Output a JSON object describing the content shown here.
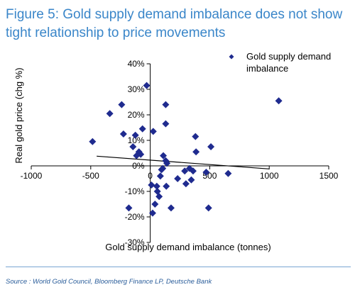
{
  "figure": {
    "title": "Figure 5: Gold supply demand imbalance does not show tight relationship to price movements",
    "source": "Source : World Gold Council, Bloomberg Finance LP, Deutsche Bank"
  },
  "colors": {
    "title": "#3a86c9",
    "marker": "#1f2b8f",
    "trendline": "#000000"
  },
  "chart_data": {
    "type": "scatter",
    "xlabel": "Gold supply demand imbalance (tonnes)",
    "ylabel": "Real gold price (chg %)",
    "xlim": [
      -1000,
      1500
    ],
    "ylim": [
      -30,
      40
    ],
    "x_ticks": [
      -1000,
      -500,
      0,
      500,
      1000,
      1500
    ],
    "y_ticks": [
      -30,
      -20,
      -10,
      0,
      10,
      20,
      30,
      40
    ],
    "x_tick_labels": [
      "-1000",
      "-500",
      "0",
      "500",
      "1000",
      "1500"
    ],
    "y_tick_labels": [
      "-30%",
      "-20%",
      "-10%",
      "0%",
      "10%",
      "20%",
      "30%",
      "40%"
    ],
    "grid": false,
    "legend_position": "top-right",
    "series": [
      {
        "name": "Gold supply demand imbalance",
        "marker": "diamond",
        "points": [
          [
            -485,
            9.5
          ],
          [
            -340,
            20.5
          ],
          [
            -240,
            24
          ],
          [
            -225,
            12.5
          ],
          [
            -180,
            -16.5
          ],
          [
            -145,
            7.5
          ],
          [
            -125,
            12
          ],
          [
            -115,
            4
          ],
          [
            -95,
            5.5
          ],
          [
            -80,
            4.5
          ],
          [
            -65,
            14.5
          ],
          [
            -30,
            31.5
          ],
          [
            10,
            -7.5
          ],
          [
            20,
            -18.5
          ],
          [
            25,
            13.5
          ],
          [
            40,
            -15
          ],
          [
            55,
            -8
          ],
          [
            60,
            -10
          ],
          [
            75,
            -12
          ],
          [
            85,
            -4
          ],
          [
            95,
            -1.5
          ],
          [
            105,
            -1
          ],
          [
            110,
            4
          ],
          [
            130,
            2
          ],
          [
            130,
            24
          ],
          [
            130,
            16.5
          ],
          [
            135,
            -8
          ],
          [
            140,
            1
          ],
          [
            175,
            -16.5
          ],
          [
            230,
            -5
          ],
          [
            290,
            -2
          ],
          [
            300,
            -7
          ],
          [
            330,
            -1
          ],
          [
            345,
            -5.5
          ],
          [
            360,
            -2
          ],
          [
            380,
            11.5
          ],
          [
            385,
            5.5
          ],
          [
            470,
            -2.5
          ],
          [
            490,
            -16.5
          ],
          [
            510,
            7.5
          ],
          [
            655,
            -3
          ],
          [
            1080,
            25.5
          ]
        ]
      }
    ],
    "trendline": {
      "x": [
        -450,
        1000
      ],
      "y": [
        3.8,
        -1.2
      ]
    }
  }
}
